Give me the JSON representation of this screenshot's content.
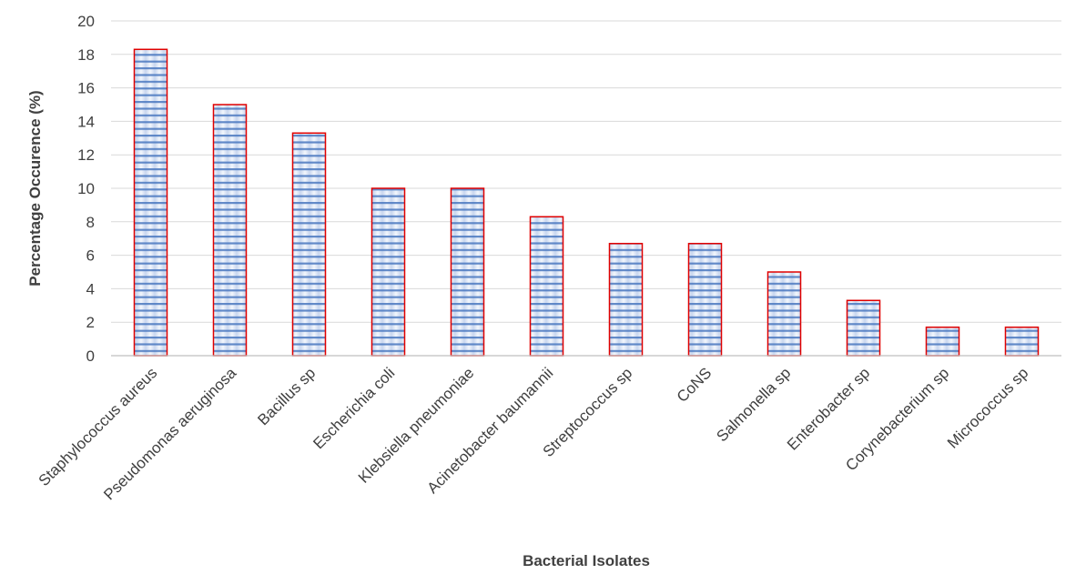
{
  "chart_data": {
    "type": "bar",
    "title": "",
    "xlabel": "Bacterial Isolates",
    "ylabel": "Percentage Occurence (%)",
    "ylim": [
      0,
      20
    ],
    "yticks": [
      0,
      2,
      4,
      6,
      8,
      10,
      12,
      14,
      16,
      18,
      20
    ],
    "grid": true,
    "legend": "none",
    "categories": [
      "Staphylococcus aureus",
      "Pseudomonas aeruginosa",
      "Bacillus sp",
      "Escherichia coli",
      "Klebsiella pneumoniae",
      "Acinetobacter baumannii",
      "Streptococcus sp",
      "CoNS",
      "Salmonella sp",
      "Enterobacter sp",
      "Corynebacterium sp",
      "Micrococcus sp"
    ],
    "values": [
      18.3,
      15.0,
      13.3,
      10.0,
      10.0,
      8.3,
      6.7,
      6.7,
      5.0,
      3.3,
      1.7,
      1.7
    ],
    "colors": {
      "bar_fill_light": "#dfe7f5",
      "bar_stripe": "#4a78c0",
      "bar_border": "#e00000",
      "grid": "#d9d9d9",
      "axis": "#bfbfbf",
      "text": "#404040"
    }
  }
}
